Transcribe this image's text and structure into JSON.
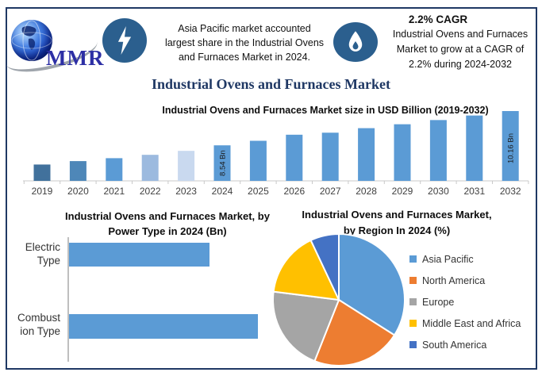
{
  "header": {
    "logo_text": "MMR",
    "callout1": {
      "lines": [
        "Asia Pacific market accounted",
        "largest share in the Industrial Ovens",
        "and Furnaces Market in 2024."
      ]
    },
    "callout2": {
      "heading": "2.2% CAGR",
      "lines": [
        "Industrial Ovens and Furnaces",
        "Market to grow at a CAGR of",
        "2.2% during 2024-2032"
      ]
    }
  },
  "main_title": "Industrial Ovens and Furnaces Market",
  "colors": {
    "frame_border": "#1F3864",
    "badge_blue": "#2B5F8E",
    "accent_bar": "#5B9BD5",
    "axis_gray": "#C9C9C9",
    "title_navy": "#1F3864"
  },
  "chart_data": [
    {
      "id": "market_size",
      "type": "bar",
      "title": "Industrial Ovens and Furnaces Market size in USD Billion (2019-2032)",
      "unit": "USD Billion",
      "categories": [
        "2019",
        "2020",
        "2021",
        "2022",
        "2023",
        "2024",
        "2025",
        "2026",
        "2027",
        "2028",
        "2029",
        "2030",
        "2031",
        "2032"
      ],
      "bar_height_rel": [
        0.234,
        0.283,
        0.325,
        0.373,
        0.43,
        0.509,
        0.574,
        0.661,
        0.69,
        0.755,
        0.811,
        0.871,
        0.936,
        1.0
      ],
      "data_labels": {
        "2024": "8.54 Bn",
        "2032": "10.16 Bn"
      },
      "bar_colors": [
        "#41719C",
        "#4E87B8",
        "#5B9BD5",
        "#9CBADF",
        "#C9D9EF",
        "#5B9BD5",
        "#5B9BD5",
        "#5B9BD5",
        "#5B9BD5",
        "#5B9BD5",
        "#5B9BD5",
        "#5B9BD5",
        "#5B9BD5",
        "#5B9BD5"
      ],
      "ylim_note": "no value axis shown",
      "grid": false
    },
    {
      "id": "power_type",
      "type": "bar",
      "orientation": "horizontal",
      "title_lines": [
        "Industrial Ovens and Furnaces Market, by",
        "Power Type in 2024 (Bn)"
      ],
      "categories": [
        "Electric Type",
        "Combustion Type"
      ],
      "values_rel": [
        0.744,
        1.0
      ],
      "bar_color": "#5B9BD5",
      "grid": false
    },
    {
      "id": "region_share",
      "type": "pie",
      "title_lines": [
        "Industrial Ovens and Furnaces Market,",
        "by Region In 2024 (%)"
      ],
      "labels": [
        "Asia Pacific",
        "North America",
        "Europe",
        "Middle East and Africa",
        "South America"
      ],
      "values_pct": [
        34,
        22,
        21,
        16,
        7
      ],
      "colors": [
        "#5B9BD5",
        "#ED7D31",
        "#A5A5A5",
        "#FFC000",
        "#4472C4"
      ],
      "start_angle_deg": 0,
      "legend_position": "right"
    }
  ]
}
